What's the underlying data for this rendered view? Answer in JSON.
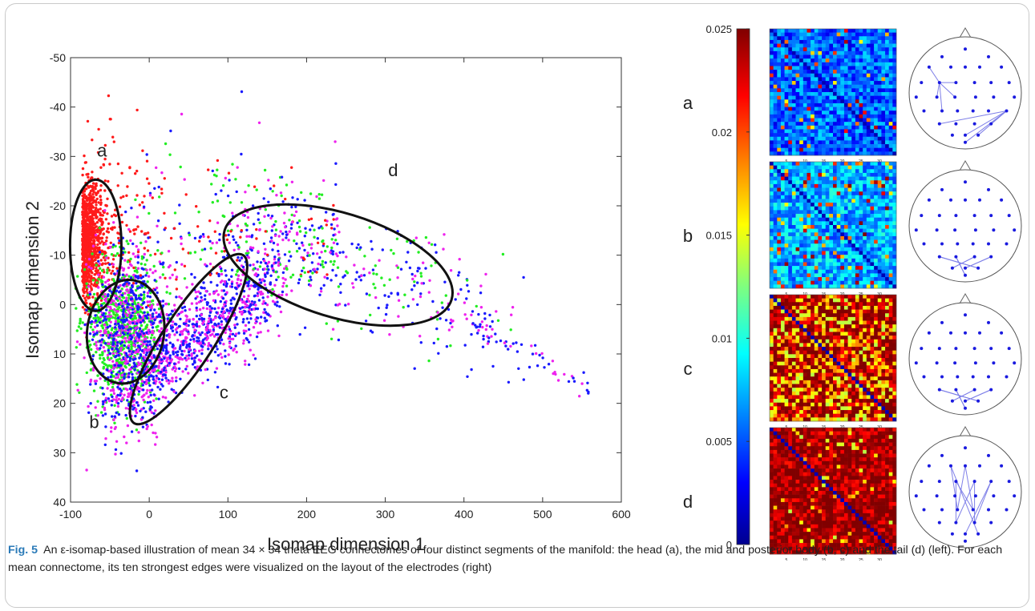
{
  "chart_data": [
    {
      "type": "scatter",
      "xlabel": "Isomap dimension 1",
      "ylabel": "Isomap dimension 2",
      "xlim": [
        -100,
        600
      ],
      "ylim": [
        -50,
        40
      ],
      "y_inverted": true,
      "xticks": [
        "-100",
        "0",
        "100",
        "200",
        "300",
        "400",
        "500",
        "600"
      ],
      "yticks": [
        "-50",
        "-40",
        "-30",
        "-20",
        "-10",
        "0",
        "10",
        "20",
        "30",
        "40"
      ],
      "series_colors": [
        "#ff1a1a",
        "#22ee22",
        "#1a1aff",
        "#ee22ee"
      ],
      "clusters": [
        {
          "label": "a",
          "cx": -68,
          "cy": -12,
          "rx": 40,
          "ry": 15,
          "angle": 0
        },
        {
          "label": "b",
          "cx": -30,
          "cy": 5.5,
          "rx": 10.5,
          "ry": 42,
          "angle": 90
        },
        {
          "label": "c",
          "cx": 50,
          "cy": 7,
          "rx": 18,
          "ry": 77,
          "angle": -35
        },
        {
          "label": "d",
          "cx": 240,
          "cy": -8,
          "rx": 165,
          "ry": 17,
          "angle": 16
        }
      ],
      "cluster_labels": [
        {
          "text": "a",
          "x": -60,
          "y": -30
        },
        {
          "text": "b",
          "x": -70,
          "y": 25
        },
        {
          "text": "c",
          "x": 95,
          "y": 19
        },
        {
          "text": "d",
          "x": 310,
          "y": -26
        }
      ],
      "grid": false,
      "legend": "none"
    },
    {
      "type": "heatmap",
      "colorbar_ticks": [
        "0.025",
        "0.02",
        "0.015",
        "0.01",
        "0.005",
        "0"
      ],
      "clim": [
        0,
        0.025
      ],
      "matrix_size": 34,
      "x_tick_labels": [
        "5",
        "10",
        "15",
        "20",
        "25",
        "30"
      ],
      "panels": [
        {
          "label": "a",
          "base_level": 0.22,
          "hot_fraction": 0.05
        },
        {
          "label": "b",
          "base_level": 0.3,
          "hot_fraction": 0.1
        },
        {
          "label": "c",
          "base_level": 0.97,
          "hot_fraction": 0.35
        },
        {
          "label": "d",
          "base_level": 0.98,
          "hot_fraction": 0.05
        }
      ]
    }
  ],
  "head_maps": {
    "electrode_count": 34,
    "edges_per_panel": 10
  },
  "caption": {
    "fig_label": "Fig. 5",
    "text": "An ε-isomap-based illustration of mean 34 × 34 theta EEG connectomes of four distinct segments of the manifold: the head (a), the mid and posterior body (b, c) and the tail (d) (left). For each mean connectome, its ten strongest edges were visualized on the layout of the electrodes (right)"
  }
}
